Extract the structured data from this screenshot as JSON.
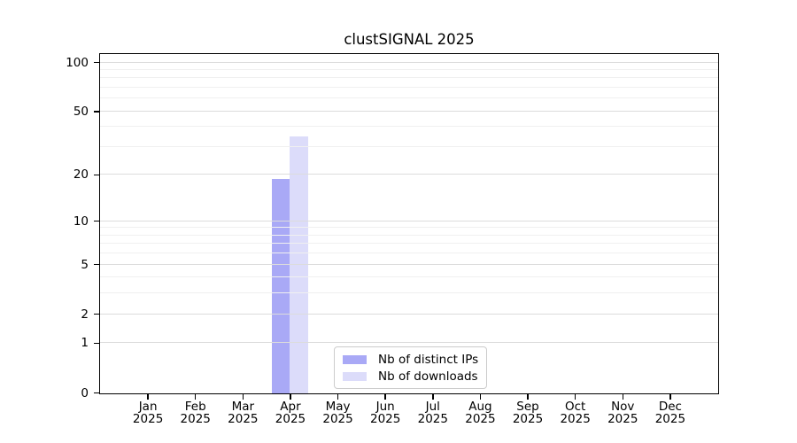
{
  "title": "clustSIGNAL 2025",
  "chart_data": {
    "type": "bar",
    "title": "clustSIGNAL 2025",
    "categories": [
      "Jan",
      "Feb",
      "Mar",
      "Apr",
      "May",
      "Jun",
      "Jul",
      "Aug",
      "Sep",
      "Oct",
      "Nov",
      "Dec"
    ],
    "year_label": "2025",
    "series": [
      {
        "name": "Nb of distinct IPs",
        "color": "#a9a9f6",
        "values": [
          0,
          0,
          0,
          19,
          0,
          0,
          0,
          0,
          0,
          0,
          0,
          0
        ]
      },
      {
        "name": "Nb of downloads",
        "color": "#dcdcfa",
        "values": [
          0,
          0,
          0,
          35,
          0,
          0,
          0,
          0,
          0,
          0,
          0,
          0
        ]
      }
    ],
    "xlabel": "",
    "ylabel": "",
    "yscale": "log1p",
    "ylim": [
      0,
      112
    ],
    "y_major_ticks": [
      0,
      1,
      2,
      5,
      10,
      20,
      50,
      100
    ],
    "y_minor_ticks": [
      3,
      4,
      6,
      7,
      8,
      9,
      30,
      40,
      60,
      70,
      80,
      90
    ],
    "grid": "horizontal",
    "legend_position": "inside-bottom-center",
    "colors": {
      "axis": "#000000",
      "grid_major": "#dcdcdc",
      "grid_minor": "#f0f0f0",
      "background": "#ffffff"
    }
  }
}
